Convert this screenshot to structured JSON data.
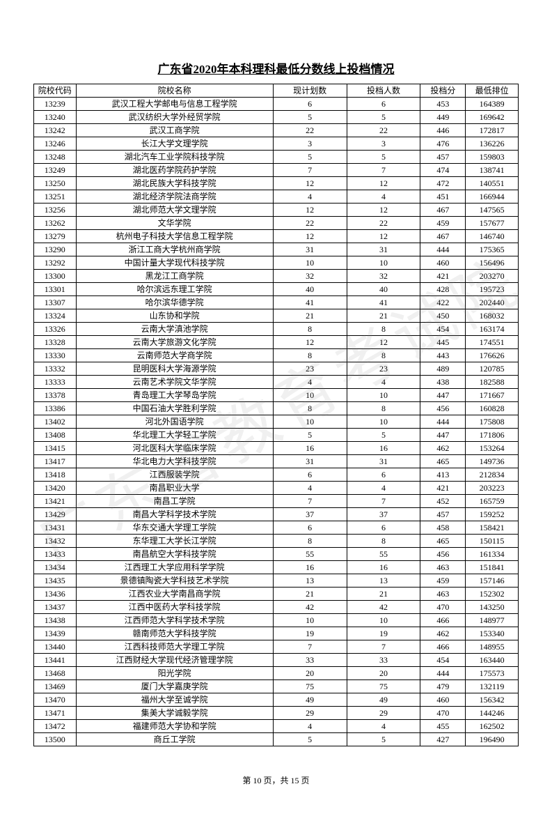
{
  "title": "广东省2020年本科理科最低分数线上投档情况",
  "watermark": "广东省教育考试院",
  "footer_prefix": "第 ",
  "footer_page": "10",
  "footer_middle": " 页，共 ",
  "footer_total": "15",
  "footer_suffix": " 页",
  "columns": [
    "院校代码",
    "院校名称",
    "现计划数",
    "投档人数",
    "投档分",
    "最低排位"
  ],
  "rows": [
    [
      "13239",
      "武汉工程大学邮电与信息工程学院",
      "6",
      "6",
      "453",
      "164389"
    ],
    [
      "13240",
      "武汉纺织大学外经贸学院",
      "5",
      "5",
      "449",
      "169642"
    ],
    [
      "13242",
      "武汉工商学院",
      "22",
      "22",
      "446",
      "172817"
    ],
    [
      "13246",
      "长江大学文理学院",
      "3",
      "3",
      "476",
      "136226"
    ],
    [
      "13248",
      "湖北汽车工业学院科技学院",
      "5",
      "5",
      "457",
      "159803"
    ],
    [
      "13249",
      "湖北医药学院药护学院",
      "7",
      "7",
      "474",
      "138741"
    ],
    [
      "13250",
      "湖北民族大学科技学院",
      "12",
      "12",
      "472",
      "140551"
    ],
    [
      "13251",
      "湖北经济学院法商学院",
      "4",
      "4",
      "451",
      "166944"
    ],
    [
      "13256",
      "湖北师范大学文理学院",
      "12",
      "12",
      "467",
      "147565"
    ],
    [
      "13262",
      "文华学院",
      "22",
      "22",
      "459",
      "157677"
    ],
    [
      "13279",
      "杭州电子科技大学信息工程学院",
      "12",
      "12",
      "467",
      "146740"
    ],
    [
      "13290",
      "浙江工商大学杭州商学院",
      "31",
      "31",
      "444",
      "175365"
    ],
    [
      "13292",
      "中国计量大学现代科技学院",
      "10",
      "10",
      "460",
      "156496"
    ],
    [
      "13300",
      "黑龙江工商学院",
      "32",
      "32",
      "421",
      "203270"
    ],
    [
      "13301",
      "哈尔滨远东理工学院",
      "40",
      "40",
      "428",
      "195723"
    ],
    [
      "13307",
      "哈尔滨华德学院",
      "41",
      "41",
      "422",
      "202440"
    ],
    [
      "13324",
      "山东协和学院",
      "21",
      "21",
      "450",
      "168032"
    ],
    [
      "13326",
      "云南大学滇池学院",
      "8",
      "8",
      "454",
      "163174"
    ],
    [
      "13328",
      "云南大学旅游文化学院",
      "12",
      "12",
      "445",
      "174551"
    ],
    [
      "13330",
      "云南师范大学商学院",
      "8",
      "8",
      "443",
      "176626"
    ],
    [
      "13332",
      "昆明医科大学海源学院",
      "23",
      "23",
      "489",
      "120785"
    ],
    [
      "13333",
      "云南艺术学院文华学院",
      "4",
      "4",
      "438",
      "182588"
    ],
    [
      "13378",
      "青岛理工大学琴岛学院",
      "10",
      "10",
      "447",
      "171667"
    ],
    [
      "13386",
      "中国石油大学胜利学院",
      "8",
      "8",
      "456",
      "160828"
    ],
    [
      "13402",
      "河北外国语学院",
      "10",
      "10",
      "444",
      "175808"
    ],
    [
      "13408",
      "华北理工大学轻工学院",
      "5",
      "5",
      "447",
      "171806"
    ],
    [
      "13415",
      "河北医科大学临床学院",
      "16",
      "16",
      "462",
      "153264"
    ],
    [
      "13417",
      "华北电力大学科技学院",
      "31",
      "31",
      "465",
      "149736"
    ],
    [
      "13418",
      "江西服装学院",
      "6",
      "6",
      "413",
      "212834"
    ],
    [
      "13420",
      "南昌职业大学",
      "4",
      "4",
      "421",
      "203223"
    ],
    [
      "13421",
      "南昌工学院",
      "7",
      "7",
      "452",
      "165759"
    ],
    [
      "13429",
      "南昌大学科学技术学院",
      "37",
      "37",
      "457",
      "159252"
    ],
    [
      "13431",
      "华东交通大学理工学院",
      "6",
      "6",
      "458",
      "158421"
    ],
    [
      "13432",
      "东华理工大学长江学院",
      "8",
      "8",
      "465",
      "150115"
    ],
    [
      "13433",
      "南昌航空大学科技学院",
      "55",
      "55",
      "456",
      "161334"
    ],
    [
      "13434",
      "江西理工大学应用科学学院",
      "16",
      "16",
      "463",
      "151841"
    ],
    [
      "13435",
      "景德镇陶瓷大学科技艺术学院",
      "13",
      "13",
      "459",
      "157146"
    ],
    [
      "13436",
      "江西农业大学南昌商学院",
      "21",
      "21",
      "463",
      "152302"
    ],
    [
      "13437",
      "江西中医药大学科技学院",
      "42",
      "42",
      "470",
      "143250"
    ],
    [
      "13438",
      "江西师范大学科学技术学院",
      "10",
      "10",
      "466",
      "148977"
    ],
    [
      "13439",
      "赣南师范大学科技学院",
      "19",
      "19",
      "462",
      "153340"
    ],
    [
      "13440",
      "江西科技师范大学理工学院",
      "7",
      "7",
      "466",
      "148955"
    ],
    [
      "13441",
      "江西财经大学现代经济管理学院",
      "33",
      "33",
      "454",
      "163440"
    ],
    [
      "13468",
      "阳光学院",
      "20",
      "20",
      "444",
      "175573"
    ],
    [
      "13469",
      "厦门大学嘉庚学院",
      "75",
      "75",
      "479",
      "132119"
    ],
    [
      "13470",
      "福州大学至诚学院",
      "49",
      "49",
      "460",
      "156342"
    ],
    [
      "13471",
      "集美大学诚毅学院",
      "29",
      "29",
      "470",
      "144246"
    ],
    [
      "13472",
      "福建师范大学协和学院",
      "4",
      "4",
      "455",
      "162502"
    ],
    [
      "13500",
      "商丘工学院",
      "5",
      "5",
      "427",
      "196490"
    ]
  ]
}
